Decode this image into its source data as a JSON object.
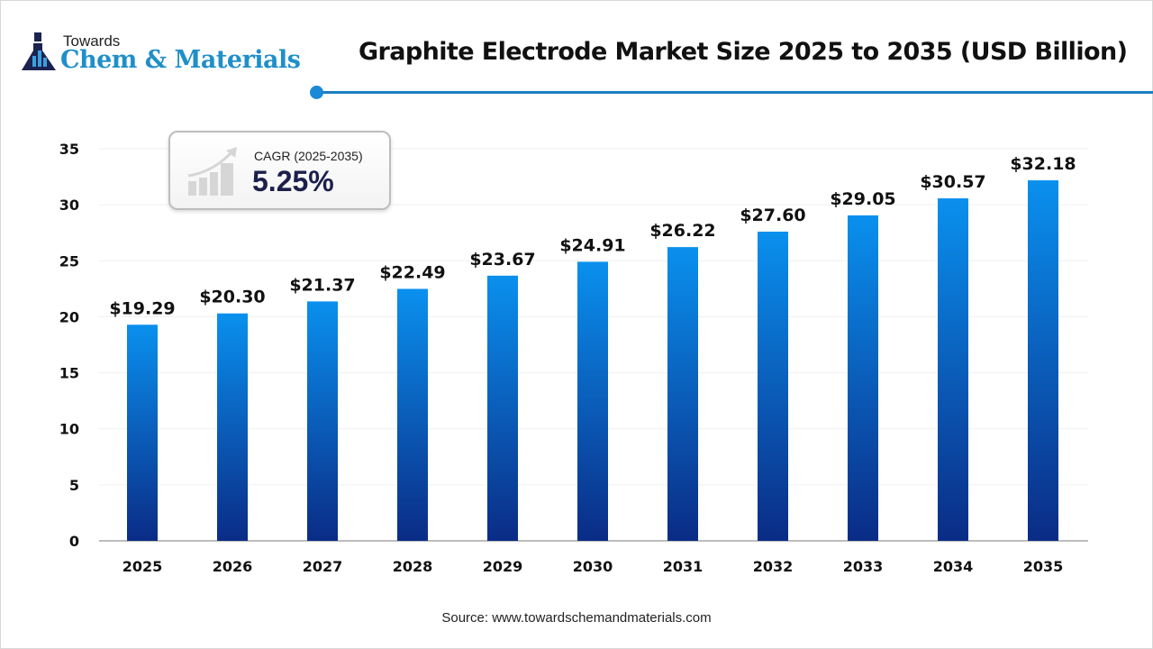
{
  "logo": {
    "line1": "Towards",
    "line2": "Chem & Materials"
  },
  "title": "Graphite Electrode Market Size 2025 to 2035 (USD Billion)",
  "cagr": {
    "label": "CAGR (2025-2035)",
    "value": "5.25%",
    "icon": "growth-chart-icon"
  },
  "source": "Source: www.towardschemandmaterials.com",
  "colors": {
    "bar_top": "#0a90ee",
    "bar_bottom": "#0a2c86",
    "accent": "#1a7fc0"
  },
  "chart_data": {
    "type": "bar",
    "title": "Graphite Electrode Market Size 2025 to 2035 (USD Billion)",
    "categories": [
      "2025",
      "2026",
      "2027",
      "2028",
      "2029",
      "2030",
      "2031",
      "2032",
      "2033",
      "2034",
      "2035"
    ],
    "values": [
      19.29,
      20.3,
      21.37,
      22.49,
      23.67,
      24.91,
      26.22,
      27.6,
      29.05,
      30.57,
      32.18
    ],
    "data_labels": [
      "$19.29",
      "$20.30",
      "$21.37",
      "$22.49",
      "$23.67",
      "$24.91",
      "$26.22",
      "$27.60",
      "$29.05",
      "$30.57",
      "$32.18"
    ],
    "yticks": [
      0,
      5,
      10,
      15,
      20,
      25,
      30,
      35
    ],
    "ylim": [
      0,
      35
    ],
    "xlabel": "",
    "ylabel": "",
    "grid": true,
    "legend": "none"
  }
}
